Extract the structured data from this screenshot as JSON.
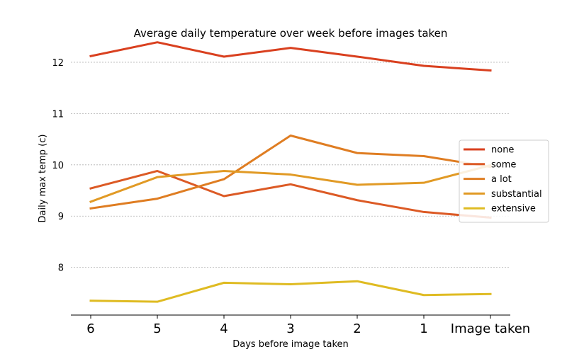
{
  "chart_data": {
    "type": "line",
    "title": "Average daily temperature over week before images taken",
    "xlabel": "Days before image taken",
    "ylabel": "Daily max temp (c)",
    "categories": [
      "6",
      "5",
      "4",
      "3",
      "2",
      "1",
      "Image taken"
    ],
    "ylim": [
      7.07,
      12.8
    ],
    "yticks": [
      8,
      9,
      10,
      11,
      12
    ],
    "grid": "horizontal dashed",
    "legend_position": "right",
    "series": [
      {
        "name": "none",
        "color": "#d9401f",
        "values": [
          12.12,
          12.39,
          12.11,
          12.28,
          12.11,
          11.93,
          11.84
        ]
      },
      {
        "name": "some",
        "color": "#dc5a25",
        "values": [
          9.54,
          9.88,
          9.39,
          9.62,
          9.31,
          9.08,
          8.97
        ]
      },
      {
        "name": "a lot",
        "color": "#df7d22",
        "values": [
          9.15,
          9.34,
          9.72,
          10.57,
          10.23,
          10.17,
          9.96
        ]
      },
      {
        "name": "substantial",
        "color": "#e19a25",
        "values": [
          9.28,
          9.76,
          9.88,
          9.81,
          9.61,
          9.65,
          9.99
        ]
      },
      {
        "name": "extensive",
        "color": "#dfbb22",
        "values": [
          7.35,
          7.33,
          7.7,
          7.67,
          7.73,
          7.46,
          7.48
        ]
      }
    ]
  }
}
